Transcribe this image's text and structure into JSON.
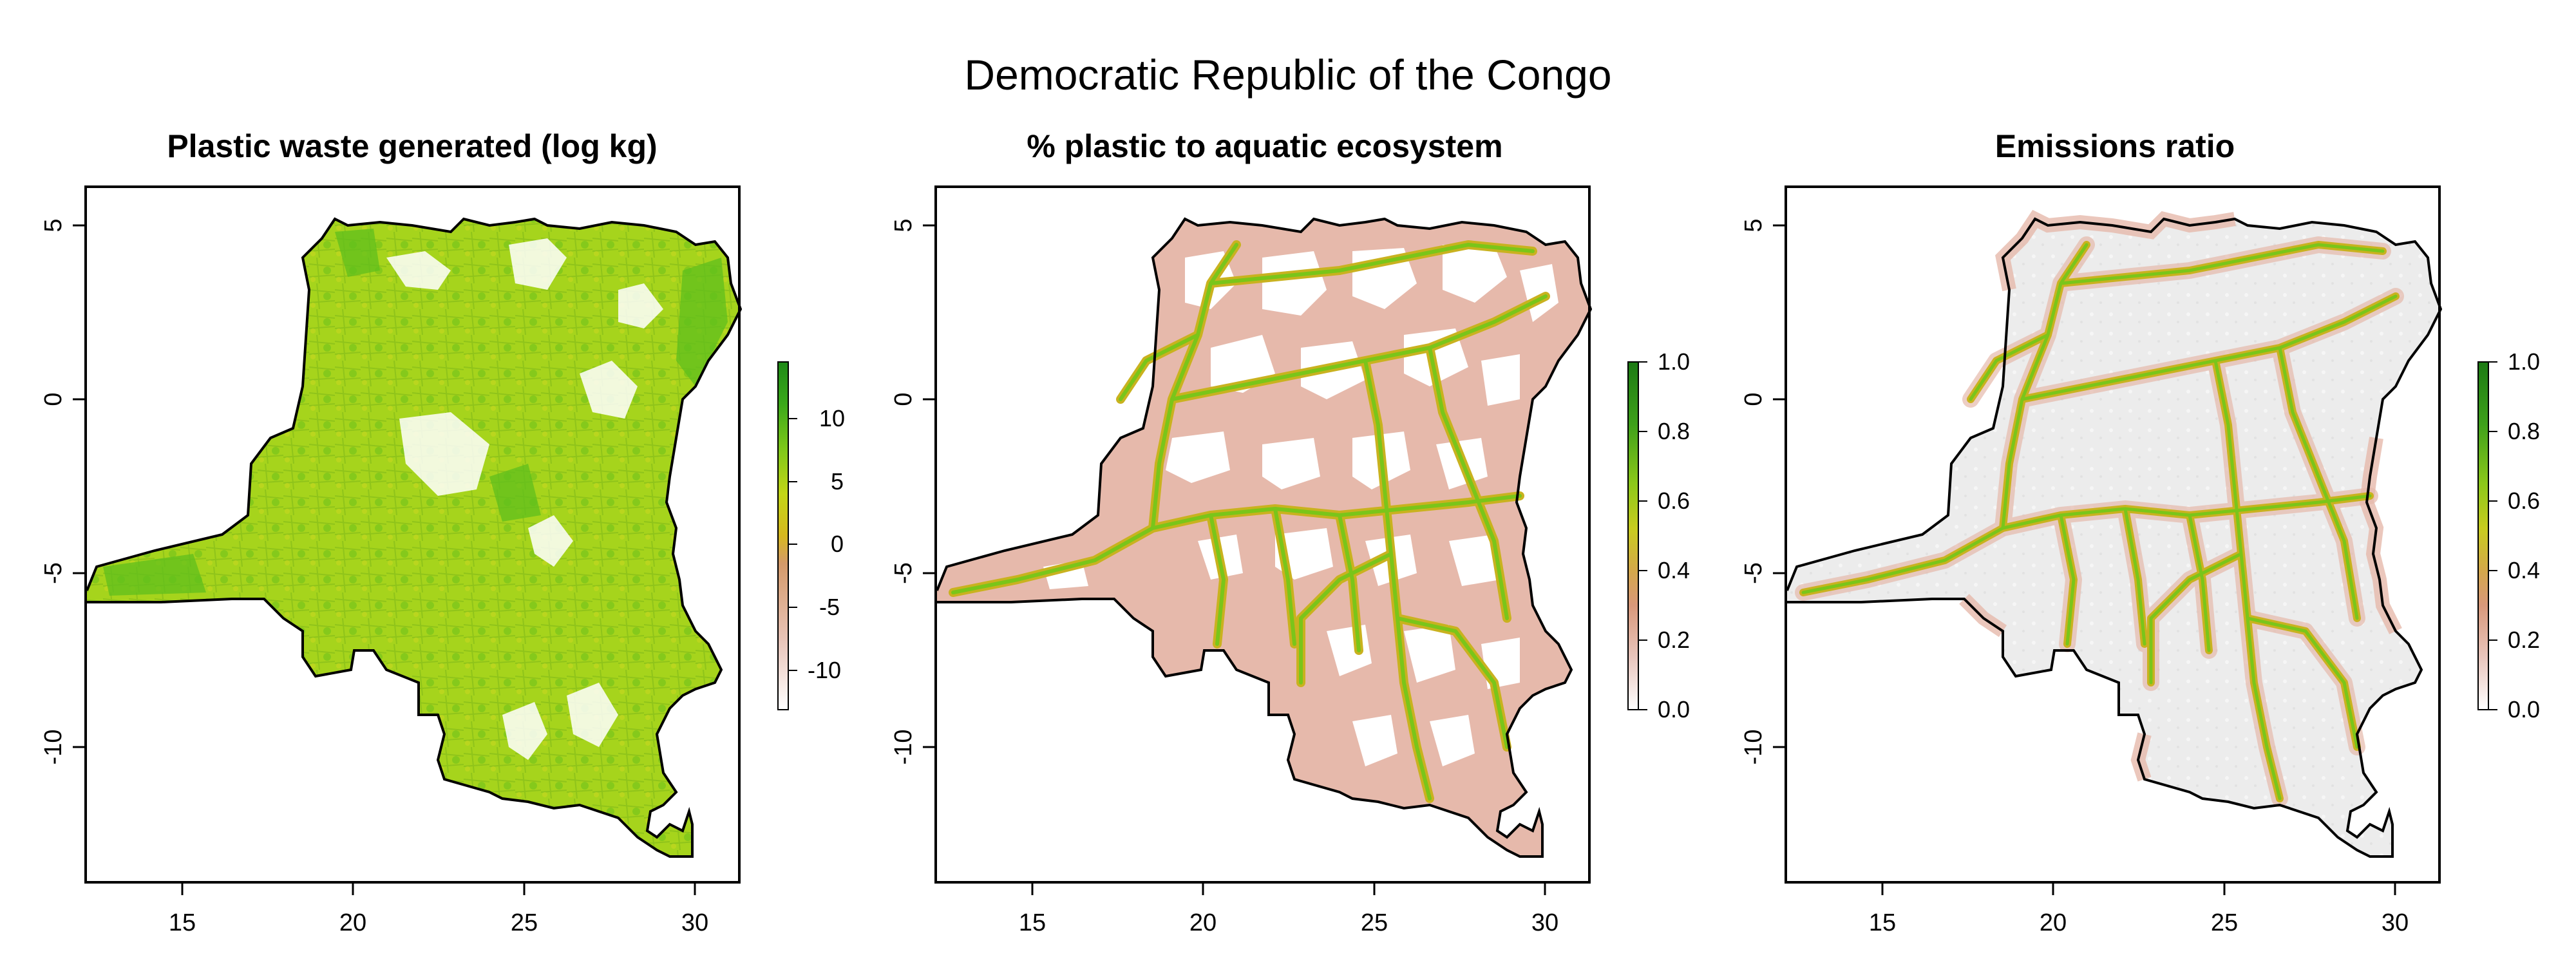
{
  "figure": {
    "title": "Democratic Republic of the Congo"
  },
  "panels": [
    {
      "title": "Plastic waste generated (log kg)",
      "x_ticks": [
        "15",
        "20",
        "25",
        "30"
      ],
      "y_ticks": [
        "5",
        "0",
        "-5",
        "-10"
      ],
      "x_ticks_values": [
        15,
        20,
        25,
        30
      ],
      "y_ticks_values": [
        5,
        0,
        -5,
        -10
      ],
      "xlim": [
        12.2,
        31.3
      ],
      "ylim": [
        -13.9,
        6.0
      ],
      "legend": {
        "ticks": [
          "10",
          "5",
          "0",
          "-5",
          "-10"
        ],
        "tick_values": [
          10,
          5,
          0,
          -5,
          -10
        ],
        "range": [
          -13.5,
          13.5
        ],
        "colors": [
          "#ffffff",
          "#e8c4b8",
          "#d49a6a",
          "#d6b81f",
          "#c3d616",
          "#7ec81a",
          "#3aa81a",
          "#1f8a18"
        ]
      },
      "style": "waste"
    },
    {
      "title": "% plastic to aquatic ecosystem",
      "x_ticks": [
        "15",
        "20",
        "25",
        "30"
      ],
      "y_ticks": [
        "5",
        "0",
        "-5",
        "-10"
      ],
      "x_ticks_values": [
        15,
        20,
        25,
        30
      ],
      "y_ticks_values": [
        5,
        0,
        -5,
        -10
      ],
      "xlim": [
        12.2,
        31.3
      ],
      "ylim": [
        -13.9,
        6.0
      ],
      "legend": {
        "ticks": [
          "1.0",
          "0.8",
          "0.6",
          "0.4",
          "0.2",
          "0.0"
        ],
        "tick_values": [
          1.0,
          0.8,
          0.6,
          0.4,
          0.2,
          0.0
        ],
        "range": [
          0.0,
          1.0
        ],
        "colors": [
          "#ffffff",
          "#e9c6bd",
          "#d8987a",
          "#d4a84a",
          "#c8cc1f",
          "#8cc81a",
          "#3ea01a",
          "#1c7a14"
        ]
      },
      "style": "rivers"
    },
    {
      "title": "Emissions ratio",
      "x_ticks": [
        "15",
        "20",
        "25",
        "30"
      ],
      "y_ticks": [
        "5",
        "0",
        "-5",
        "-10"
      ],
      "x_ticks_values": [
        15,
        20,
        25,
        30
      ],
      "y_ticks_values": [
        5,
        0,
        -5,
        -10
      ],
      "xlim": [
        12.2,
        31.3
      ],
      "ylim": [
        -13.9,
        6.0
      ],
      "legend": {
        "ticks": [
          "1.0",
          "0.8",
          "0.6",
          "0.4",
          "0.2",
          "0.0"
        ],
        "tick_values": [
          1.0,
          0.8,
          0.6,
          0.4,
          0.2,
          0.0
        ],
        "range": [
          0.0,
          1.0
        ],
        "colors": [
          "#ffffff",
          "#e9c6bd",
          "#d8987a",
          "#d4a84a",
          "#c8cc1f",
          "#8cc81a",
          "#3ea01a",
          "#1c7a14"
        ]
      },
      "style": "emissions"
    }
  ],
  "colors": {
    "outline": "#000000",
    "waste_base": "#a6d41c",
    "waste_dark": "#5fbf1c",
    "gap": "#ffffff",
    "river_core": "#7ac51a",
    "river_edge": "#c9b21f",
    "river_halo": "#e6b9ab",
    "emissions_bg": "#ececec"
  }
}
